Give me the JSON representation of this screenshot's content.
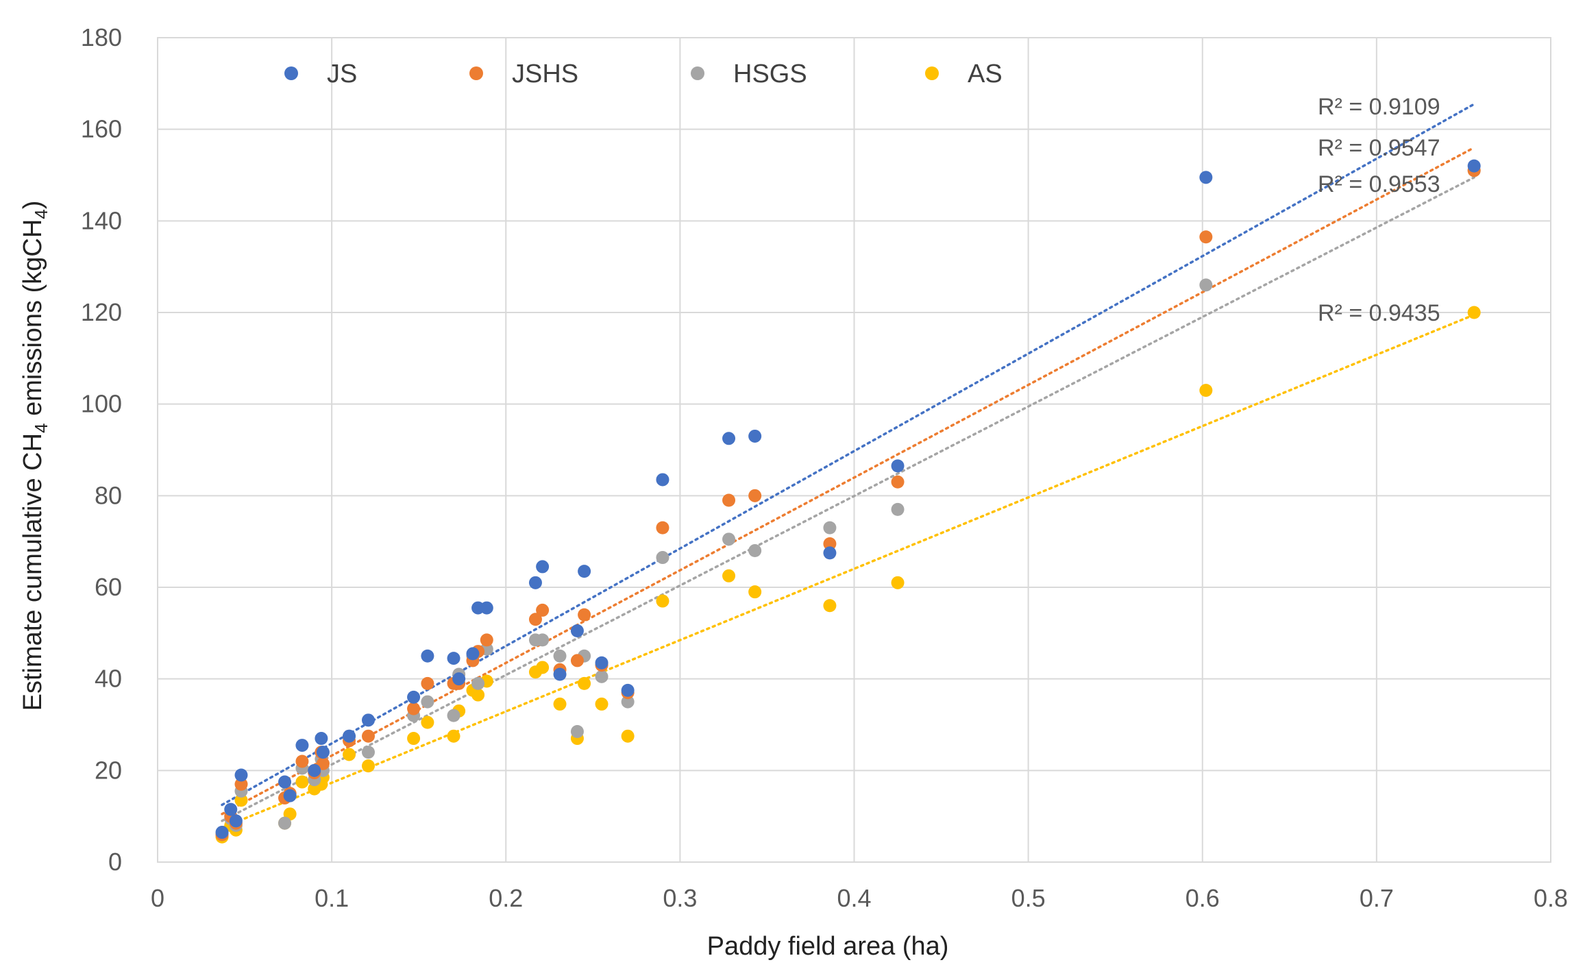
{
  "chart_data": {
    "type": "scatter",
    "title": "",
    "xlabel": "Paddy field area (ha)",
    "ylabel_prefix": "Estimate cumulative CH",
    "ylabel_sub": "4",
    "ylabel_mid": " emissions (kgCH",
    "ylabel_sub2": "4",
    "ylabel_suffix": ")",
    "xlim": [
      0,
      0.8
    ],
    "ylim": [
      0,
      180
    ],
    "xticks": [
      0,
      0.1,
      0.2,
      0.3,
      0.4,
      0.5,
      0.6,
      0.7,
      0.8
    ],
    "yticks": [
      0,
      20,
      40,
      60,
      80,
      100,
      120,
      140,
      160,
      180
    ],
    "grid": true,
    "legend_position": "top",
    "x": [
      0.037,
      0.042,
      0.045,
      0.048,
      0.073,
      0.076,
      0.083,
      0.09,
      0.094,
      0.095,
      0.11,
      0.121,
      0.147,
      0.155,
      0.17,
      0.173,
      0.181,
      0.184,
      0.189,
      0.217,
      0.221,
      0.231,
      0.241,
      0.245,
      0.255,
      0.27,
      0.29,
      0.328,
      0.343,
      0.386,
      0.425,
      0.602,
      0.756
    ],
    "series": [
      {
        "name": "JS",
        "color": "#4472C4",
        "r2": "R² = 0.9109",
        "values": [
          6.5,
          11.5,
          9.0,
          19.0,
          17.5,
          14.5,
          25.5,
          20.0,
          27.0,
          24.0,
          27.5,
          31.0,
          36.0,
          45.0,
          44.5,
          40.0,
          45.5,
          55.5,
          55.5,
          61.0,
          64.5,
          41.0,
          50.5,
          63.5,
          43.5,
          37.5,
          83.5,
          92.5,
          93.0,
          67.5,
          86.5,
          149.5,
          152.0
        ],
        "trend": [
          0.037,
          12.5,
          0.756,
          165.5
        ]
      },
      {
        "name": "JSHS",
        "color": "#ED7D31",
        "r2": "R² = 0.9547",
        "values": [
          6.0,
          10.0,
          8.5,
          17.0,
          14.0,
          15.0,
          22.0,
          19.5,
          24.0,
          21.5,
          26.5,
          27.5,
          33.5,
          39.0,
          39.0,
          39.0,
          44.0,
          46.0,
          48.5,
          53.0,
          55.0,
          42.0,
          44.0,
          54.0,
          43.0,
          37.0,
          73.0,
          79.0,
          80.0,
          69.5,
          83.0,
          136.5,
          151.0
        ],
        "trend": [
          0.037,
          10.5,
          0.756,
          156.0
        ]
      },
      {
        "name": "HSGS",
        "color": "#A5A5A5",
        "r2": "R² = 0.9553",
        "values": [
          6.0,
          9.5,
          8.0,
          15.5,
          8.5,
          14.5,
          20.5,
          18.0,
          22.5,
          20.0,
          27.5,
          24.0,
          32.0,
          35.0,
          32.0,
          41.0,
          45.0,
          39.0,
          46.5,
          48.5,
          48.5,
          45.0,
          28.5,
          45.0,
          40.5,
          35.0,
          66.5,
          70.5,
          68.0,
          73.0,
          77.0,
          126.0,
          151.0
        ],
        "trend": [
          0.037,
          9.0,
          0.756,
          149.5
        ]
      },
      {
        "name": "AS",
        "color": "#FFC000",
        "r2": "R² = 0.9435",
        "values": [
          5.5,
          8.0,
          7.0,
          13.5,
          8.5,
          10.5,
          17.5,
          16.0,
          17.0,
          18.5,
          23.5,
          21.0,
          27.0,
          30.5,
          27.5,
          33.0,
          37.5,
          36.5,
          39.5,
          41.5,
          42.5,
          34.5,
          27.0,
          39.0,
          34.5,
          27.5,
          57.0,
          62.5,
          59.0,
          56.0,
          61.0,
          103.0,
          120.0
        ],
        "trend": [
          0.037,
          7.5,
          0.756,
          119.5
        ]
      }
    ],
    "r2_annotations": [
      "R² = 0.9109",
      "R² = 0.9547",
      "R² = 0.9553",
      "R² = 0.9435"
    ]
  }
}
